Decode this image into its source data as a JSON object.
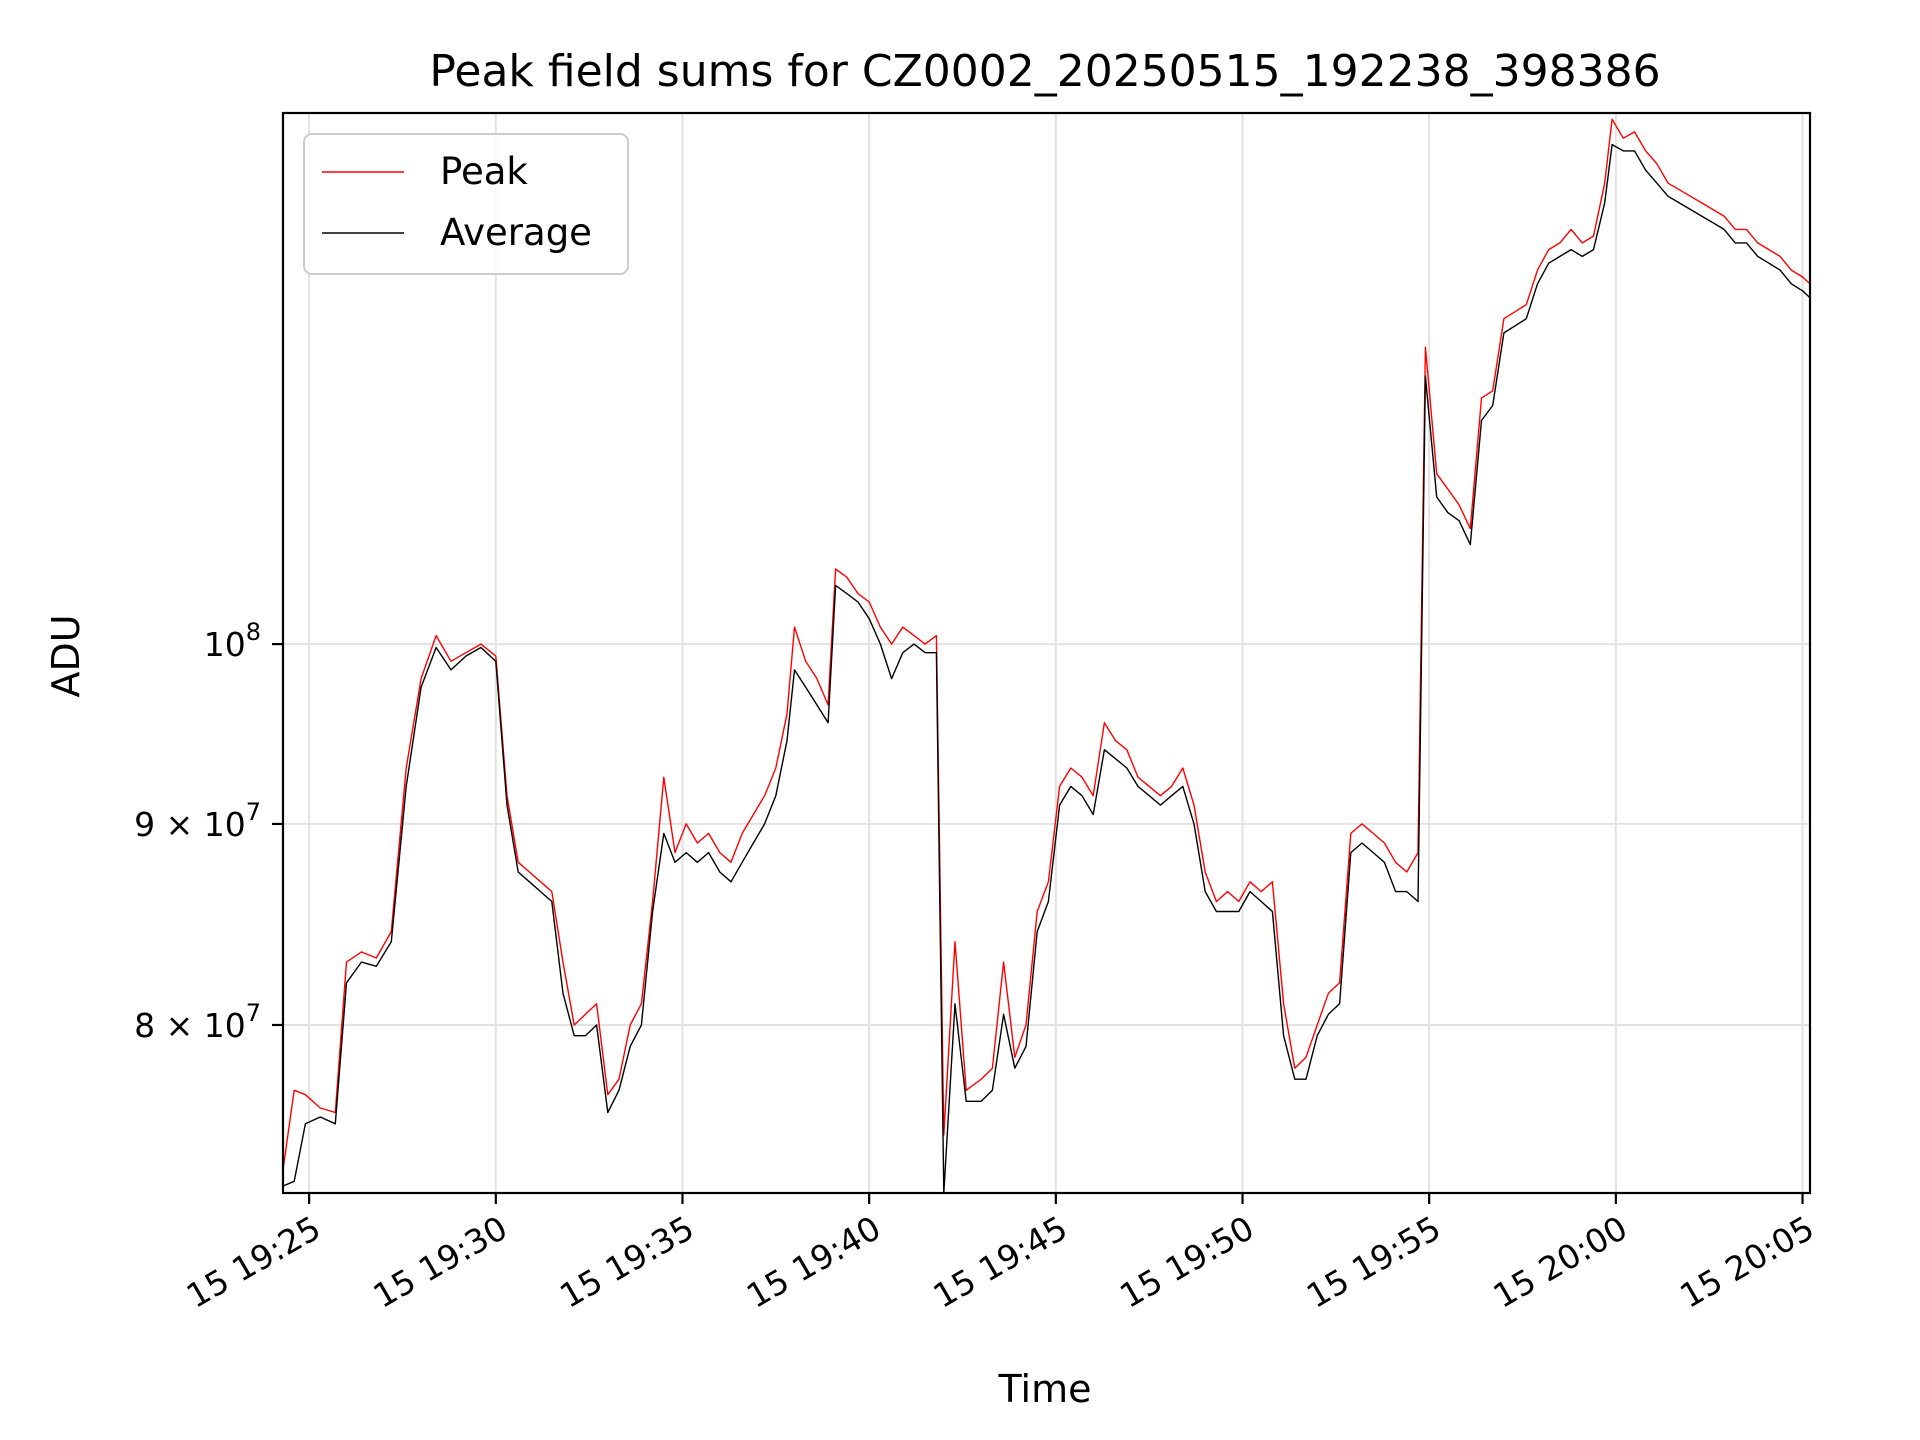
{
  "chart_data": {
    "type": "line",
    "title": "Peak field sums for CZ0002_20250515_192238_398386",
    "xlabel": "Time",
    "ylabel": "ADU",
    "y_scale": "log",
    "grid": true,
    "legend_position": "top-left",
    "xlim_minutes": [
      -0.7,
      40.2
    ],
    "ylim": [
      72500000,
      136500000
    ],
    "x_ticks": [
      {
        "value": 0,
        "label": "15 19:25"
      },
      {
        "value": 5,
        "label": "15 19:30"
      },
      {
        "value": 10,
        "label": "15 19:35"
      },
      {
        "value": 15,
        "label": "15 19:40"
      },
      {
        "value": 20,
        "label": "15 19:45"
      },
      {
        "value": 25,
        "label": "15 19:50"
      },
      {
        "value": 30,
        "label": "15 19:55"
      },
      {
        "value": 35,
        "label": "15 20:00"
      },
      {
        "value": 40,
        "label": "15 20:05"
      }
    ],
    "y_ticks": [
      {
        "value": 80000000,
        "mantissa": "8",
        "exponent": "7"
      },
      {
        "value": 90000000,
        "mantissa": "9",
        "exponent": "7"
      },
      {
        "value": 100000000,
        "mantissa": "10",
        "exponent": "8"
      }
    ],
    "x_units": "minutes after 15 19:25",
    "series": [
      {
        "name": "Peak",
        "color": "#ff0000",
        "points": [
          [
            -0.7,
            73.5
          ],
          [
            -0.4,
            77.0
          ],
          [
            -0.1,
            76.8
          ],
          [
            0.3,
            76.2
          ],
          [
            0.7,
            76.0
          ],
          [
            1.0,
            83.0
          ],
          [
            1.4,
            83.5
          ],
          [
            1.8,
            83.2
          ],
          [
            2.2,
            84.5
          ],
          [
            2.6,
            93.0
          ],
          [
            3.0,
            98.0
          ],
          [
            3.4,
            100.5
          ],
          [
            3.8,
            99.0
          ],
          [
            4.2,
            99.5
          ],
          [
            4.6,
            100.0
          ],
          [
            5.0,
            99.3
          ],
          [
            5.3,
            91.5
          ],
          [
            5.6,
            88.0
          ],
          [
            5.9,
            87.5
          ],
          [
            6.2,
            87.0
          ],
          [
            6.5,
            86.5
          ],
          [
            6.8,
            83.0
          ],
          [
            7.1,
            80.0
          ],
          [
            7.4,
            80.5
          ],
          [
            7.7,
            81.0
          ],
          [
            8.0,
            76.8
          ],
          [
            8.3,
            77.5
          ],
          [
            8.6,
            80.0
          ],
          [
            8.9,
            81.0
          ],
          [
            9.2,
            86.0
          ],
          [
            9.5,
            92.5
          ],
          [
            9.8,
            88.5
          ],
          [
            10.1,
            90.0
          ],
          [
            10.4,
            89.0
          ],
          [
            10.7,
            89.5
          ],
          [
            11.0,
            88.5
          ],
          [
            11.3,
            88.0
          ],
          [
            11.6,
            89.5
          ],
          [
            11.9,
            90.5
          ],
          [
            12.2,
            91.5
          ],
          [
            12.5,
            93.0
          ],
          [
            12.8,
            96.0
          ],
          [
            13.0,
            101.0
          ],
          [
            13.3,
            99.0
          ],
          [
            13.6,
            98.0
          ],
          [
            13.9,
            96.5
          ],
          [
            14.1,
            104.5
          ],
          [
            14.4,
            104.0
          ],
          [
            14.7,
            103.0
          ],
          [
            15.0,
            102.5
          ],
          [
            15.3,
            101.0
          ],
          [
            15.6,
            100.0
          ],
          [
            15.9,
            101.0
          ],
          [
            16.2,
            100.5
          ],
          [
            16.5,
            100.0
          ],
          [
            16.8,
            100.5
          ],
          [
            17.0,
            75.0
          ],
          [
            17.3,
            84.0
          ],
          [
            17.6,
            77.0
          ],
          [
            18.0,
            77.5
          ],
          [
            18.3,
            78.0
          ],
          [
            18.6,
            83.0
          ],
          [
            18.9,
            78.5
          ],
          [
            19.2,
            80.0
          ],
          [
            19.5,
            85.5
          ],
          [
            19.8,
            87.0
          ],
          [
            20.1,
            92.0
          ],
          [
            20.4,
            93.0
          ],
          [
            20.7,
            92.5
          ],
          [
            21.0,
            91.5
          ],
          [
            21.3,
            95.5
          ],
          [
            21.6,
            94.5
          ],
          [
            21.9,
            94.0
          ],
          [
            22.2,
            92.5
          ],
          [
            22.5,
            92.0
          ],
          [
            22.8,
            91.5
          ],
          [
            23.1,
            92.0
          ],
          [
            23.4,
            93.0
          ],
          [
            23.7,
            91.0
          ],
          [
            24.0,
            87.5
          ],
          [
            24.3,
            86.0
          ],
          [
            24.6,
            86.5
          ],
          [
            24.9,
            86.0
          ],
          [
            25.2,
            87.0
          ],
          [
            25.5,
            86.5
          ],
          [
            25.8,
            87.0
          ],
          [
            26.1,
            81.0
          ],
          [
            26.4,
            78.0
          ],
          [
            26.7,
            78.5
          ],
          [
            27.0,
            80.0
          ],
          [
            27.3,
            81.5
          ],
          [
            27.6,
            82.0
          ],
          [
            27.9,
            89.5
          ],
          [
            28.2,
            90.0
          ],
          [
            28.5,
            89.5
          ],
          [
            28.8,
            89.0
          ],
          [
            29.1,
            88.0
          ],
          [
            29.4,
            87.5
          ],
          [
            29.7,
            88.5
          ],
          [
            29.9,
            119.0
          ],
          [
            30.2,
            110.5
          ],
          [
            30.5,
            109.5
          ],
          [
            30.8,
            108.5
          ],
          [
            31.1,
            107.0
          ],
          [
            31.4,
            115.5
          ],
          [
            31.7,
            116.0
          ],
          [
            32.0,
            121.0
          ],
          [
            32.3,
            121.5
          ],
          [
            32.6,
            122.0
          ],
          [
            32.9,
            124.5
          ],
          [
            33.2,
            126.0
          ],
          [
            33.5,
            126.5
          ],
          [
            33.8,
            127.5
          ],
          [
            34.1,
            126.5
          ],
          [
            34.4,
            127.0
          ],
          [
            34.7,
            131.0
          ],
          [
            34.9,
            136.0
          ],
          [
            35.2,
            134.5
          ],
          [
            35.5,
            135.0
          ],
          [
            35.8,
            133.5
          ],
          [
            36.1,
            132.5
          ],
          [
            36.4,
            131.0
          ],
          [
            36.7,
            130.5
          ],
          [
            37.0,
            130.0
          ],
          [
            37.3,
            129.5
          ],
          [
            37.6,
            129.0
          ],
          [
            37.9,
            128.5
          ],
          [
            38.2,
            127.5
          ],
          [
            38.5,
            127.5
          ],
          [
            38.8,
            126.5
          ],
          [
            39.1,
            126.0
          ],
          [
            39.4,
            125.5
          ],
          [
            39.7,
            124.5
          ],
          [
            40.0,
            124.0
          ],
          [
            40.2,
            123.5
          ]
        ]
      },
      {
        "name": "Average",
        "color": "#000000",
        "points": [
          [
            -0.7,
            72.8
          ],
          [
            -0.4,
            73.0
          ],
          [
            -0.1,
            75.5
          ],
          [
            0.3,
            75.8
          ],
          [
            0.7,
            75.5
          ],
          [
            1.0,
            82.0
          ],
          [
            1.4,
            83.0
          ],
          [
            1.8,
            82.8
          ],
          [
            2.2,
            84.0
          ],
          [
            2.6,
            92.0
          ],
          [
            3.0,
            97.5
          ],
          [
            3.4,
            99.8
          ],
          [
            3.8,
            98.5
          ],
          [
            4.2,
            99.3
          ],
          [
            4.6,
            99.8
          ],
          [
            5.0,
            99.0
          ],
          [
            5.3,
            91.0
          ],
          [
            5.6,
            87.5
          ],
          [
            5.9,
            87.0
          ],
          [
            6.2,
            86.5
          ],
          [
            6.5,
            86.0
          ],
          [
            6.8,
            81.5
          ],
          [
            7.1,
            79.5
          ],
          [
            7.4,
            79.5
          ],
          [
            7.7,
            80.0
          ],
          [
            8.0,
            76.0
          ],
          [
            8.3,
            77.0
          ],
          [
            8.6,
            79.0
          ],
          [
            8.9,
            80.0
          ],
          [
            9.2,
            85.5
          ],
          [
            9.5,
            89.5
          ],
          [
            9.8,
            88.0
          ],
          [
            10.1,
            88.5
          ],
          [
            10.4,
            88.0
          ],
          [
            10.7,
            88.5
          ],
          [
            11.0,
            87.5
          ],
          [
            11.3,
            87.0
          ],
          [
            11.6,
            88.0
          ],
          [
            11.9,
            89.0
          ],
          [
            12.2,
            90.0
          ],
          [
            12.5,
            91.5
          ],
          [
            12.8,
            94.5
          ],
          [
            13.0,
            98.5
          ],
          [
            13.3,
            97.5
          ],
          [
            13.6,
            96.5
          ],
          [
            13.9,
            95.5
          ],
          [
            14.1,
            103.5
          ],
          [
            14.4,
            103.0
          ],
          [
            14.7,
            102.5
          ],
          [
            15.0,
            101.5
          ],
          [
            15.3,
            100.0
          ],
          [
            15.6,
            98.0
          ],
          [
            15.9,
            99.5
          ],
          [
            16.2,
            100.0
          ],
          [
            16.5,
            99.5
          ],
          [
            16.8,
            99.5
          ],
          [
            17.0,
            72.5
          ],
          [
            17.3,
            81.0
          ],
          [
            17.6,
            76.5
          ],
          [
            18.0,
            76.5
          ],
          [
            18.3,
            77.0
          ],
          [
            18.6,
            80.5
          ],
          [
            18.9,
            78.0
          ],
          [
            19.2,
            79.0
          ],
          [
            19.5,
            84.5
          ],
          [
            19.8,
            86.0
          ],
          [
            20.1,
            91.0
          ],
          [
            20.4,
            92.0
          ],
          [
            20.7,
            91.5
          ],
          [
            21.0,
            90.5
          ],
          [
            21.3,
            94.0
          ],
          [
            21.6,
            93.5
          ],
          [
            21.9,
            93.0
          ],
          [
            22.2,
            92.0
          ],
          [
            22.5,
            91.5
          ],
          [
            22.8,
            91.0
          ],
          [
            23.1,
            91.5
          ],
          [
            23.4,
            92.0
          ],
          [
            23.7,
            90.0
          ],
          [
            24.0,
            86.5
          ],
          [
            24.3,
            85.5
          ],
          [
            24.6,
            85.5
          ],
          [
            24.9,
            85.5
          ],
          [
            25.2,
            86.5
          ],
          [
            25.5,
            86.0
          ],
          [
            25.8,
            85.5
          ],
          [
            26.1,
            79.5
          ],
          [
            26.4,
            77.5
          ],
          [
            26.7,
            77.5
          ],
          [
            27.0,
            79.5
          ],
          [
            27.3,
            80.5
          ],
          [
            27.6,
            81.0
          ],
          [
            27.9,
            88.5
          ],
          [
            28.2,
            89.0
          ],
          [
            28.5,
            88.5
          ],
          [
            28.8,
            88.0
          ],
          [
            29.1,
            86.5
          ],
          [
            29.4,
            86.5
          ],
          [
            29.7,
            86.0
          ],
          [
            29.9,
            117.0
          ],
          [
            30.2,
            109.0
          ],
          [
            30.5,
            108.0
          ],
          [
            30.8,
            107.5
          ],
          [
            31.1,
            106.0
          ],
          [
            31.4,
            114.0
          ],
          [
            31.7,
            115.0
          ],
          [
            32.0,
            120.0
          ],
          [
            32.3,
            120.5
          ],
          [
            32.6,
            121.0
          ],
          [
            32.9,
            123.5
          ],
          [
            33.2,
            125.0
          ],
          [
            33.5,
            125.5
          ],
          [
            33.8,
            126.0
          ],
          [
            34.1,
            125.5
          ],
          [
            34.4,
            126.0
          ],
          [
            34.7,
            129.5
          ],
          [
            34.9,
            134.0
          ],
          [
            35.2,
            133.5
          ],
          [
            35.5,
            133.5
          ],
          [
            35.8,
            132.0
          ],
          [
            36.1,
            131.0
          ],
          [
            36.4,
            130.0
          ],
          [
            36.7,
            129.5
          ],
          [
            37.0,
            129.0
          ],
          [
            37.3,
            128.5
          ],
          [
            37.6,
            128.0
          ],
          [
            37.9,
            127.5
          ],
          [
            38.2,
            126.5
          ],
          [
            38.5,
            126.5
          ],
          [
            38.8,
            125.5
          ],
          [
            39.1,
            125.0
          ],
          [
            39.4,
            124.5
          ],
          [
            39.7,
            123.5
          ],
          [
            40.0,
            123.0
          ],
          [
            40.2,
            122.5
          ]
        ],
        "units_note": "values in millions of ADU"
      }
    ]
  }
}
